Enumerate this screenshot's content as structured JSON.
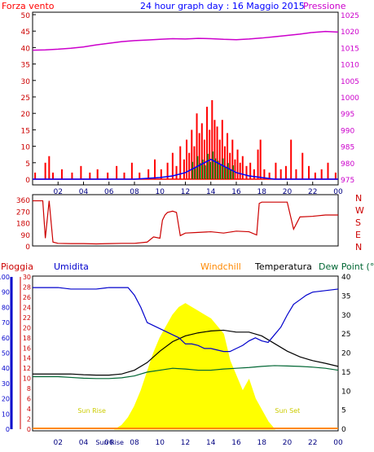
{
  "header": {
    "left_title": "Forza vento",
    "center_title": "24 hour graph day : 16 Maggio 2015",
    "right_title": "Pressione"
  },
  "labels": {
    "pioggia": "Pioggia",
    "umidita": "Umidita",
    "windchill": "Windchill",
    "temperatura": "Temperatura",
    "dewpoint": "Dew Point (°C",
    "sunrise_marker": "Sun Rise",
    "sunset_marker": "Sun Set",
    "sunrise_axis": "Sun Rise"
  },
  "colors": {
    "wind": "#ff0000",
    "gust_avg": "#0000ff",
    "green": "#008000",
    "pressure": "#cc00cc",
    "direction": "#cc0000",
    "humidity": "#0000cc",
    "temperature": "#000000",
    "dewpoint": "#006633",
    "sun": "#ffff00",
    "sun_text": "#cccc00",
    "windchill": "#ff8800",
    "axis_left_wind": "#cc0000",
    "axis_right": "#cc00cc"
  },
  "chart_data": [
    {
      "type": "bar",
      "id": "wind",
      "x_ticks": [
        "02",
        "04",
        "06",
        "08",
        "10",
        "12",
        "14",
        "16",
        "18",
        "20",
        "22",
        "00"
      ],
      "y_ticks_left": [
        0,
        5,
        10,
        15,
        20,
        25,
        30,
        35,
        40,
        45,
        50
      ],
      "y_ticks_right": [
        975,
        980,
        985,
        990,
        995,
        1000,
        1005,
        1010,
        1015,
        1020,
        1025
      ],
      "ylim_left": [
        0,
        50
      ],
      "ylim_right": [
        975,
        1025
      ],
      "pressure_series": {
        "x": [
          0,
          1,
          2,
          3,
          4,
          5,
          6,
          7,
          8,
          9,
          10,
          11,
          12,
          13,
          14,
          15,
          16,
          17,
          18,
          19,
          20,
          21,
          22,
          23,
          24
        ],
        "y": [
          1014.2,
          1014.3,
          1014.5,
          1014.8,
          1015.2,
          1015.8,
          1016.3,
          1016.8,
          1017.1,
          1017.3,
          1017.5,
          1017.7,
          1017.6,
          1017.8,
          1017.7,
          1017.5,
          1017.4,
          1017.6,
          1017.9,
          1018.3,
          1018.7,
          1019.1,
          1019.6,
          1019.9,
          1019.7
        ]
      },
      "gust_bars": {
        "x": [
          0.2,
          1.0,
          1.3,
          1.6,
          2.3,
          3.1,
          3.8,
          4.5,
          5.1,
          5.9,
          6.6,
          7.2,
          7.8,
          8.4,
          9.1,
          9.6,
          10.1,
          10.6,
          11.0,
          11.3,
          11.6,
          11.9,
          12.1,
          12.3,
          12.5,
          12.7,
          12.9,
          13.1,
          13.3,
          13.5,
          13.7,
          13.9,
          14.1,
          14.3,
          14.5,
          14.7,
          14.9,
          15.1,
          15.3,
          15.5,
          15.7,
          15.9,
          16.1,
          16.3,
          16.5,
          16.8,
          17.1,
          17.4,
          17.7,
          17.9,
          18.2,
          18.6,
          19.1,
          19.5,
          19.9,
          20.3,
          20.7,
          21.2,
          21.7,
          22.2,
          22.7,
          23.2,
          23.8
        ],
        "y": [
          2,
          5,
          7,
          2,
          3,
          2,
          4,
          2,
          3,
          2,
          4,
          2,
          5,
          2,
          3,
          6,
          3,
          5,
          8,
          4,
          10,
          6,
          12,
          8,
          15,
          10,
          20,
          14,
          17,
          12,
          22,
          15,
          24,
          18,
          16,
          12,
          18,
          10,
          14,
          8,
          12,
          6,
          9,
          5,
          7,
          4,
          5,
          3,
          9,
          12,
          3,
          2,
          5,
          3,
          4,
          12,
          3,
          8,
          4,
          2,
          3,
          5,
          2
        ]
      },
      "avg_series": {
        "x": [
          0,
          2,
          4,
          6,
          8,
          10,
          11,
          12,
          12.5,
          13,
          13.5,
          14,
          14.5,
          15,
          15.5,
          16,
          17,
          18,
          19,
          20,
          22,
          24
        ],
        "y": [
          0,
          0,
          0,
          0,
          0,
          0.5,
          1,
          2,
          3,
          4,
          5,
          6,
          5,
          4,
          3,
          2,
          1,
          0.5,
          0,
          0,
          0,
          0
        ]
      }
    },
    {
      "type": "line",
      "id": "direction",
      "y_ticks_left": [
        0,
        90,
        180,
        270,
        360
      ],
      "ylim": [
        0,
        360
      ],
      "compass_labels": [
        "N",
        "W",
        "S",
        "E",
        "N"
      ],
      "x": [
        0,
        0.8,
        1.0,
        1.3,
        1.6,
        2.0,
        3.0,
        4.0,
        5.0,
        6.0,
        7.0,
        8.0,
        9.0,
        9.5,
        10.0,
        10.2,
        10.4,
        10.6,
        11.0,
        11.3,
        11.6,
        12.0,
        13.0,
        14.0,
        15.0,
        16.0,
        17.0,
        17.6,
        17.8,
        18.0,
        19.0,
        20.0,
        20.5,
        21.0,
        22.0,
        23.0,
        24.0
      ],
      "y": [
        350,
        350,
        60,
        350,
        30,
        20,
        18,
        18,
        16,
        18,
        20,
        20,
        30,
        70,
        60,
        200,
        240,
        260,
        270,
        260,
        80,
        100,
        105,
        110,
        100,
        115,
        110,
        85,
        330,
        340,
        340,
        340,
        130,
        225,
        230,
        240,
        240
      ]
    },
    {
      "type": "area",
      "id": "humidity_temp",
      "x_ticks": [
        "02",
        "04",
        "06",
        "08",
        "10",
        "12",
        "14",
        "16",
        "18",
        "20",
        "22",
        "00"
      ],
      "y_ticks_humidity": [
        0,
        10,
        20,
        30,
        40,
        50,
        60,
        70,
        80,
        90,
        100
      ],
      "y_ticks_pioggia": [
        0,
        2,
        4,
        6,
        8,
        10,
        12,
        14,
        16,
        18,
        20,
        22,
        24,
        26,
        28,
        30
      ],
      "y_ticks_right": [
        0,
        5,
        10,
        15,
        20,
        25,
        30,
        35,
        40
      ],
      "ylim_humidity": [
        0,
        100
      ],
      "ylim_right": [
        0,
        40
      ],
      "humidity": {
        "x": [
          0,
          1,
          2,
          3,
          4,
          5,
          6,
          7,
          7.5,
          8,
          8.5,
          9,
          9.5,
          10,
          10.5,
          11,
          11.5,
          12,
          12.5,
          13,
          13.5,
          14,
          14.5,
          15,
          15.5,
          16,
          16.5,
          17,
          17.5,
          18,
          18.5,
          19,
          19.5,
          20,
          20.5,
          21,
          21.5,
          22,
          23,
          24
        ],
        "y": [
          93,
          93,
          93,
          92,
          92,
          92,
          93,
          93,
          93,
          88,
          80,
          70,
          68,
          66,
          64,
          62,
          60,
          56,
          56,
          55,
          53,
          53,
          52,
          51,
          51,
          53,
          55,
          58,
          60,
          58,
          57,
          62,
          67,
          75,
          82,
          85,
          88,
          90,
          91,
          92
        ]
      },
      "temperature": {
        "x": [
          0,
          1,
          2,
          3,
          4,
          5,
          6,
          7,
          8,
          9,
          10,
          11,
          12,
          13,
          14,
          15,
          16,
          17,
          18,
          19,
          20,
          21,
          22,
          23,
          24
        ],
        "y": [
          14.5,
          14.5,
          14.5,
          14.5,
          14.3,
          14.2,
          14.2,
          14.5,
          15.5,
          17.5,
          20.5,
          23,
          24.5,
          25.3,
          25.8,
          26,
          25.5,
          25.5,
          24.5,
          22.5,
          20.5,
          19,
          18,
          17.3,
          16.5
        ]
      },
      "dewpoint": {
        "x": [
          0,
          1,
          2,
          3,
          4,
          5,
          6,
          7,
          8,
          9,
          10,
          11,
          12,
          13,
          14,
          15,
          16,
          17,
          18,
          19,
          20,
          21,
          22,
          23,
          24
        ],
        "y": [
          13.8,
          13.8,
          13.8,
          13.6,
          13.4,
          13.3,
          13.3,
          13.5,
          14,
          15,
          15.5,
          16,
          15.8,
          15.5,
          15.5,
          15.8,
          16,
          16.2,
          16.5,
          16.7,
          16.6,
          16.5,
          16.3,
          16,
          15.5
        ]
      },
      "solar": {
        "x": [
          6.5,
          7,
          7.5,
          8,
          8.5,
          9,
          9.5,
          10,
          10.5,
          11,
          11.5,
          12,
          12.5,
          13,
          13.5,
          14,
          14.5,
          15,
          15.5,
          16,
          16.5,
          17,
          17.5,
          18,
          18.5,
          19
        ],
        "y": [
          0,
          1,
          3,
          6,
          10,
          15,
          20,
          24,
          27,
          30,
          32,
          33,
          32,
          31,
          30,
          29,
          27,
          25,
          18,
          14,
          10,
          13,
          8,
          5,
          2,
          0
        ]
      },
      "sun_rise_hour": 6.1,
      "sun_set_hour": 19.8
    }
  ]
}
